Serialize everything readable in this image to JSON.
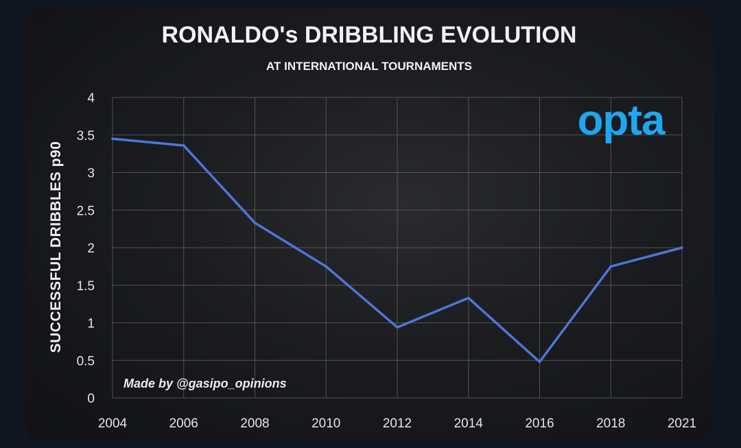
{
  "chart_data": {
    "type": "line",
    "title": "RONALDO's DRIBBLING EVOLUTION",
    "subtitle": "AT INTERNATIONAL TOURNAMENTS",
    "ylabel": "SUCCESSFUL DRIBBLES p90",
    "xlabel": "",
    "categories": [
      "2004",
      "2006",
      "2008",
      "2010",
      "2012",
      "2014",
      "2016",
      "2018",
      "2021"
    ],
    "series": [
      {
        "values": [
          3.45,
          3.36,
          2.33,
          1.75,
          0.94,
          1.33,
          0.48,
          1.75,
          2.0
        ],
        "color": "#4a78d4"
      }
    ],
    "ylim": [
      0,
      4
    ],
    "yticks": [
      "0",
      "0.5",
      "1",
      "1.5",
      "2",
      "2.5",
      "3",
      "3.5",
      "4"
    ],
    "grid": true,
    "legend": "none"
  },
  "logo_text": "opta",
  "credit": "Made by @gasipo_opinions",
  "colors": {
    "background": "#1b1c20",
    "line": "#4a78d4",
    "logo": "#1ea7f0",
    "grid": "#6a6a6a"
  }
}
